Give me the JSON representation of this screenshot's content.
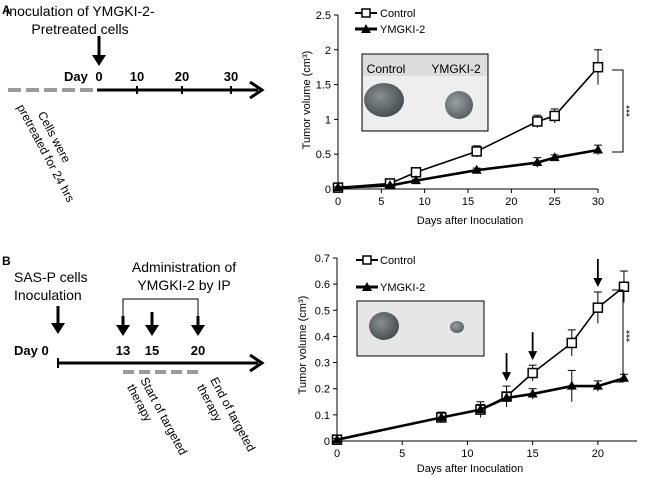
{
  "panel_a": {
    "label": "A",
    "schematic": {
      "title_line1": "Inoculation  of YMGKI-2-",
      "title_line2": "Pretreated cells",
      "day_label": "Day",
      "ticks": [
        "0",
        "10",
        "20",
        "30"
      ],
      "pretreat_line1": "Cells were",
      "pretreat_line2": "pretreated for 24 hrs"
    },
    "photo": {
      "left_label": "Control",
      "right_label": "YMGKI-2",
      "left_tumor_desc": "large excised tumor",
      "right_tumor_desc": "small excised tumor"
    },
    "significance": "***"
  },
  "panel_b": {
    "label": "B",
    "schematic": {
      "inoculation_line1": "SAS-P cells",
      "inoculation_line2": "Inoculation",
      "admin_line1": "Administration of",
      "admin_line2": "YMGKI-2  by IP",
      "day_label": "Day 0",
      "ticks": [
        "13",
        "15",
        "20"
      ],
      "start_line1": "Start of targeted",
      "start_line2": "therapy",
      "end_line1": "End of targeted",
      "end_line2": "therapy"
    },
    "photo": {
      "left_tumor_desc": "large excised tumor",
      "right_tumor_desc": "small excised tumor"
    },
    "injection_days": [
      13,
      15,
      20
    ],
    "significance": "***"
  },
  "chart_data": [
    {
      "type": "line",
      "panel": "A",
      "xlabel": "Days after Inoculation",
      "ylabel": "Tumor volume (cm³)",
      "xlim": [
        0,
        30
      ],
      "ylim": [
        0,
        2.5
      ],
      "xticks": [
        0,
        5,
        10,
        15,
        20,
        25,
        30
      ],
      "yticks": [
        0,
        0.5,
        1,
        1.5,
        2,
        2.5
      ],
      "ytick_labels": [
        "0",
        "0.5",
        "1",
        "1.5",
        "2",
        "2.5"
      ],
      "legend_position": "top-center",
      "series": [
        {
          "name": "Control",
          "marker": "open-square",
          "x": [
            0,
            6,
            9,
            16,
            23,
            25,
            30
          ],
          "y": [
            0.02,
            0.08,
            0.24,
            0.54,
            0.97,
            1.05,
            1.75
          ],
          "err": [
            0.01,
            0.02,
            0.04,
            0.08,
            0.09,
            0.1,
            0.25
          ]
        },
        {
          "name": "YMGKI-2",
          "marker": "filled-triangle",
          "x": [
            0,
            6,
            9,
            16,
            23,
            25,
            30
          ],
          "y": [
            0.02,
            0.05,
            0.12,
            0.27,
            0.38,
            0.45,
            0.56
          ],
          "err": [
            0.01,
            0.01,
            0.02,
            0.03,
            0.07,
            0.04,
            0.07
          ]
        }
      ]
    },
    {
      "type": "line",
      "panel": "B",
      "xlabel": "Days after Inoculation",
      "ylabel": "Tumor volume (cm³)",
      "xlim": [
        0,
        23
      ],
      "ylim": [
        0,
        0.7
      ],
      "xticks": [
        0,
        5,
        10,
        15,
        20
      ],
      "yticks": [
        0,
        0.1,
        0.2,
        0.3,
        0.4,
        0.5,
        0.6,
        0.7
      ],
      "ytick_labels": [
        "0",
        "0.1",
        "0.2",
        "0.3",
        "0.4",
        "0.5",
        "0.6",
        "0.7"
      ],
      "legend_position": "top-center",
      "series": [
        {
          "name": "Control",
          "marker": "open-square",
          "x": [
            0,
            8,
            11,
            13,
            15,
            18,
            20,
            22
          ],
          "y": [
            0.005,
            0.09,
            0.12,
            0.17,
            0.26,
            0.375,
            0.51,
            0.59
          ],
          "err": [
            0.005,
            0.02,
            0.03,
            0.04,
            0.03,
            0.05,
            0.06,
            0.06
          ]
        },
        {
          "name": "YMGKI-2",
          "marker": "filled-triangle",
          "x": [
            0,
            8,
            11,
            13,
            15,
            18,
            20,
            22
          ],
          "y": [
            0.005,
            0.09,
            0.12,
            0.165,
            0.18,
            0.21,
            0.21,
            0.24
          ],
          "err": [
            0.005,
            0.02,
            0.02,
            0.02,
            0.02,
            0.06,
            0.02,
            0.015
          ]
        }
      ]
    }
  ]
}
